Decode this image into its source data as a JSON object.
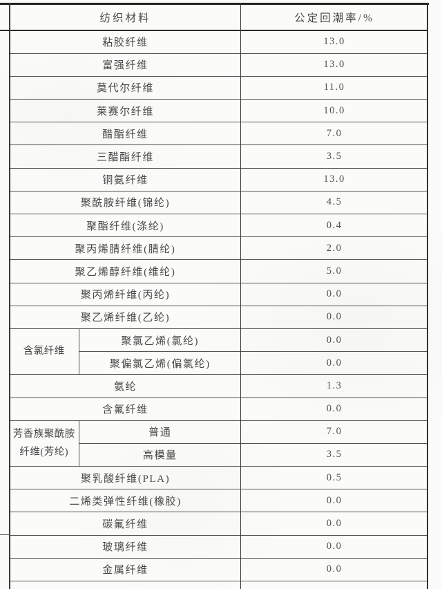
{
  "page": {
    "background_color": "#fbfbf9",
    "line_color": "#4c4a48",
    "heavy_line_color": "#232220",
    "text_color": "#474747"
  },
  "table": {
    "header": {
      "material": "纺织材料",
      "regain": "公定回潮率/%"
    },
    "rows": [
      {
        "material": "粘胶纤维",
        "value": "13.0"
      },
      {
        "material": "富强纤维",
        "value": "13.0"
      },
      {
        "material": "莫代尔纤维",
        "value": "11.0"
      },
      {
        "material": "莱赛尔纤维",
        "value": "10.0"
      },
      {
        "material": "醋酯纤维",
        "value": "7.0"
      },
      {
        "material": "三醋酯纤维",
        "value": "3.5"
      },
      {
        "material": "铜氨纤维",
        "value": "13.0"
      },
      {
        "material": "聚酰胺纤维(锦纶)",
        "value": "4.5"
      },
      {
        "material": "聚酯纤维(涤纶)",
        "value": "0.4"
      },
      {
        "material": "聚丙烯腈纤维(腈纶)",
        "value": "2.0"
      },
      {
        "material": "聚乙烯醇纤维(维纶)",
        "value": "5.0"
      },
      {
        "material": "聚丙烯纤维(丙纶)",
        "value": "0.0"
      },
      {
        "material": "聚乙烯纤维(乙纶)",
        "value": "0.0"
      },
      {
        "group": "含氯纤维",
        "material": "聚氯乙烯(氯纶)",
        "value": "0.0"
      },
      {
        "material": "聚偏氯乙烯(偏氯纶)",
        "value": "0.0"
      },
      {
        "material": "氨纶",
        "value": "1.3"
      },
      {
        "material": "含氟纤维",
        "value": "0.0"
      },
      {
        "group": "芳香族聚酰胺纤维(芳纶)",
        "material": "普通",
        "value": "7.0"
      },
      {
        "material": "高模量",
        "value": "3.5"
      },
      {
        "material": "聚乳酸纤维(PLA)",
        "value": "0.5"
      },
      {
        "material": "二烯类弹性纤维(橡胶)",
        "value": "0.0"
      },
      {
        "material": "碳氟纤维",
        "value": "0.0"
      },
      {
        "material": "玻璃纤维",
        "value": "0.0"
      },
      {
        "material": "金属纤维",
        "value": "0.0"
      }
    ]
  }
}
